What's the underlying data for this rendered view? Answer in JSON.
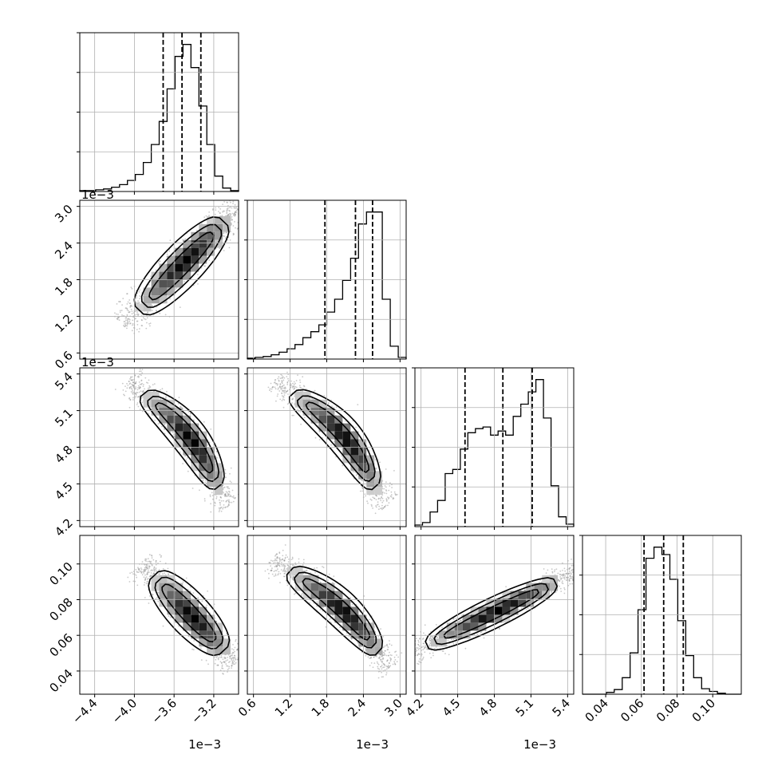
{
  "chart_data": {
    "type": "corner",
    "n_params": 4,
    "grid": true,
    "params": [
      {
        "range": [
          -0.00455,
          -0.00295
        ],
        "ticks": [
          -0.0044,
          -0.004,
          -0.0036,
          -0.0032
        ],
        "tick_labels": [
          "−4.4",
          "−4.0",
          "−3.6",
          "−3.2"
        ],
        "offset_label": "1e−3",
        "quantiles": [
          -0.00371,
          -0.00352,
          -0.00333
        ],
        "hist": {
          "edges_start": -0.00455,
          "edges_end": -0.00295,
          "counts": [
            1,
            1,
            2,
            3,
            5,
            8,
            13,
            20,
            34,
            55,
            82,
            120,
            158,
            172,
            145,
            100,
            55,
            18,
            4,
            1
          ]
        }
      },
      {
        "range": [
          0.0005,
          0.0031
        ],
        "ticks": [
          0.0006,
          0.0012,
          0.0018,
          0.0024,
          0.003
        ],
        "tick_labels": [
          "0.6",
          "1.2",
          "1.8",
          "2.4",
          "3.0"
        ],
        "offset_label": "1e−3",
        "quantiles": [
          0.00177,
          0.00227,
          0.00255
        ],
        "hist": {
          "edges_start": 0.0005,
          "edges_end": 0.0031,
          "counts": [
            1,
            2,
            3,
            5,
            8,
            12,
            17,
            25,
            32,
            40,
            55,
            70,
            92,
            118,
            158,
            172,
            172,
            70,
            15,
            2
          ]
        }
      },
      {
        "range": [
          0.00415,
          0.00545
        ],
        "ticks": [
          0.0042,
          0.0045,
          0.0048,
          0.0051,
          0.0054
        ],
        "tick_labels": [
          "4.2",
          "4.5",
          "4.8",
          "5.1",
          "5.4"
        ],
        "offset_label": "1e−3",
        "quantiles": [
          0.00456,
          0.00487,
          0.00511
        ],
        "hist": {
          "edges_start": 0.00415,
          "edges_end": 0.00545,
          "counts": [
            2,
            5,
            18,
            32,
            65,
            70,
            95,
            115,
            120,
            122,
            112,
            117,
            112,
            135,
            150,
            165,
            180,
            133,
            50,
            12,
            3
          ]
        }
      },
      {
        "range": [
          0.027,
          0.116
        ],
        "ticks": [
          0.04,
          0.06,
          0.08,
          0.1
        ],
        "tick_labels": [
          "0.04",
          "0.06",
          "0.08",
          "0.10"
        ],
        "offset_label": "",
        "quantiles": [
          0.0615,
          0.0725,
          0.0835
        ],
        "hist": {
          "edges_start": 0.027,
          "edges_end": 0.116,
          "counts": [
            0,
            0,
            0,
            2,
            5,
            18,
            45,
            92,
            148,
            160,
            152,
            125,
            80,
            42,
            18,
            6,
            3,
            1,
            0,
            0
          ]
        }
      }
    ],
    "pairs": [
      {
        "x_param": 0,
        "y_param": 1,
        "x_start": -0.00395,
        "y_start": 0.0013,
        "x_end": -0.0031,
        "y_end": 0.00275,
        "width_frac": 0.07,
        "band_bend": 0.0
      },
      {
        "x_param": 0,
        "y_param": 2,
        "x_start": -0.0039,
        "y_start": 0.00524,
        "x_end": -0.00315,
        "y_end": 0.00448,
        "width_frac": 0.06,
        "band_bend": -0.05
      },
      {
        "x_param": 1,
        "y_param": 2,
        "x_start": 0.00125,
        "y_start": 0.00524,
        "x_end": 0.0026,
        "y_end": 0.00448,
        "width_frac": 0.06,
        "band_bend": -0.06
      },
      {
        "x_param": 0,
        "y_param": 3,
        "x_start": -0.0038,
        "y_start": 0.0935,
        "x_end": -0.0031,
        "y_end": 0.0515,
        "width_frac": 0.07,
        "band_bend": 0.0
      },
      {
        "x_param": 1,
        "y_param": 3,
        "x_start": 0.0012,
        "y_start": 0.096,
        "x_end": 0.00265,
        "y_end": 0.051,
        "width_frac": 0.06,
        "band_bend": -0.04
      },
      {
        "x_param": 2,
        "y_param": 3,
        "x_start": 0.00425,
        "y_start": 0.0545,
        "x_end": 0.0053,
        "y_end": 0.0895,
        "width_frac": 0.05,
        "band_bend": 0.0
      }
    ]
  }
}
